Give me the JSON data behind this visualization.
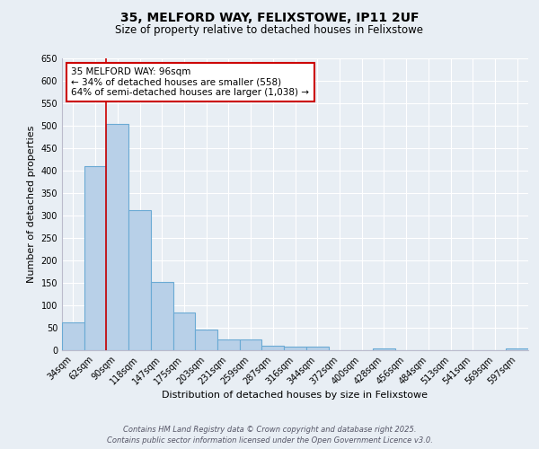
{
  "title_line1": "35, MELFORD WAY, FELIXSTOWE, IP11 2UF",
  "title_line2": "Size of property relative to detached houses in Felixstowe",
  "xlabel": "Distribution of detached houses by size in Felixstowe",
  "ylabel": "Number of detached properties",
  "categories": [
    "34sqm",
    "62sqm",
    "90sqm",
    "118sqm",
    "147sqm",
    "175sqm",
    "203sqm",
    "231sqm",
    "259sqm",
    "287sqm",
    "316sqm",
    "344sqm",
    "372sqm",
    "400sqm",
    "428sqm",
    "456sqm",
    "484sqm",
    "513sqm",
    "541sqm",
    "569sqm",
    "597sqm"
  ],
  "values": [
    62,
    410,
    505,
    313,
    153,
    85,
    47,
    25,
    25,
    11,
    9,
    8,
    1,
    0,
    5,
    1,
    0,
    0,
    0,
    0,
    5
  ],
  "bar_color": "#b8d0e8",
  "bar_edge_color": "#6aaad4",
  "bar_linewidth": 0.8,
  "vline_x_index": 2,
  "vline_color": "#cc0000",
  "vline_linewidth": 1.2,
  "annotation_text": "35 MELFORD WAY: 96sqm\n← 34% of detached houses are smaller (558)\n64% of semi-detached houses are larger (1,038) →",
  "annotation_box_color": "#cc0000",
  "annotation_fill": "white",
  "ylim": [
    0,
    650
  ],
  "yticks": [
    0,
    50,
    100,
    150,
    200,
    250,
    300,
    350,
    400,
    450,
    500,
    550,
    600,
    650
  ],
  "footer_line1": "Contains HM Land Registry data © Crown copyright and database right 2025.",
  "footer_line2": "Contains public sector information licensed under the Open Government Licence v3.0.",
  "bg_color": "#e8eef4",
  "plot_bg_color": "#e8eef4",
  "grid_color": "#ffffff",
  "title1_fontsize": 10,
  "title2_fontsize": 8.5,
  "xlabel_fontsize": 8,
  "ylabel_fontsize": 8,
  "tick_fontsize": 7,
  "annot_fontsize": 7.5,
  "footer_fontsize": 6
}
